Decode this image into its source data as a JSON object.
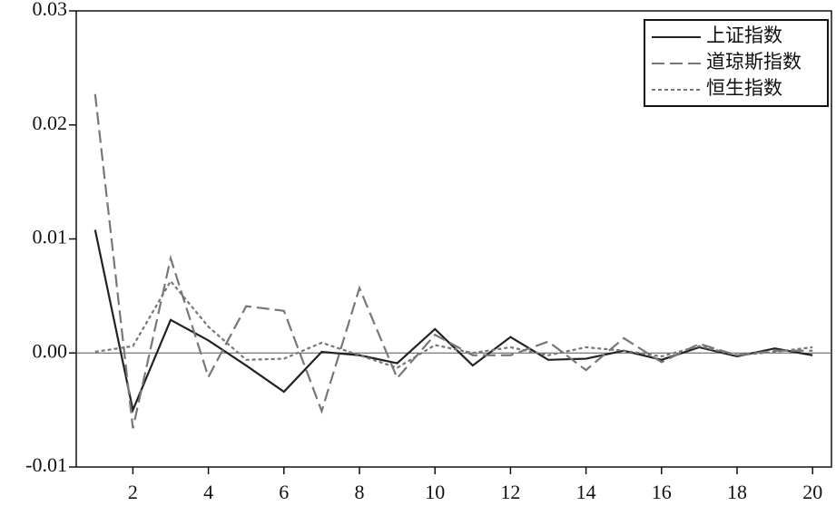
{
  "chart_data": {
    "type": "line",
    "x": [
      1,
      2,
      3,
      4,
      5,
      6,
      7,
      8,
      9,
      10,
      11,
      12,
      13,
      14,
      15,
      16,
      17,
      18,
      19,
      20
    ],
    "xlim": [
      0.5,
      20.5
    ],
    "xticks": [
      2,
      4,
      6,
      8,
      10,
      12,
      14,
      16,
      18,
      20
    ],
    "ylim": [
      -0.01,
      0.03
    ],
    "yticks": [
      -0.01,
      {
        "value": 0,
        "label": "0.00"
      },
      0.01,
      0.02,
      0.03
    ],
    "legend": "upper right",
    "series": [
      {
        "name": "上证指数",
        "color": "#222222",
        "style": "solid",
        "values": [
          0.0108,
          -0.005,
          0.0029,
          0.0011,
          -0.0011,
          -0.0034,
          0.0001,
          -0.0002,
          -0.0009,
          0.0021,
          -0.0011,
          0.0014,
          -0.0006,
          -0.0005,
          0.0002,
          -0.0006,
          0.0005,
          -0.0003,
          0.0004,
          -0.0002
        ]
      },
      {
        "name": "道琼斯指数",
        "color": "#777777",
        "style": "dashed",
        "values": [
          0.0227,
          -0.0066,
          0.0083,
          -0.0021,
          0.0041,
          0.0037,
          -0.0051,
          0.0057,
          -0.0022,
          0.0016,
          -0.0002,
          -0.0002,
          0.001,
          -0.0015,
          0.0013,
          -0.0008,
          0.0008,
          -0.0002,
          0.0002,
          0.0002
        ]
      },
      {
        "name": "恒生指数",
        "color": "#777777",
        "style": "dotted",
        "values": [
          0.0001,
          0.0006,
          0.0063,
          0.0023,
          -0.0006,
          -0.0005,
          0.0009,
          -0.0002,
          -0.0013,
          0.0007,
          0,
          0.0005,
          -0.0002,
          0.0005,
          0.0002,
          -0.0003,
          0.0006,
          -0.0002,
          0.0001,
          0.0005
        ]
      }
    ]
  }
}
